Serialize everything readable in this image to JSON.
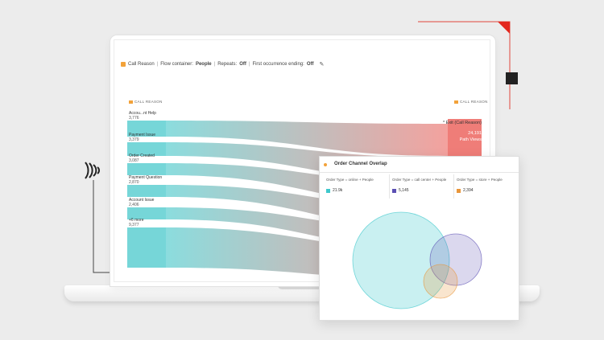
{
  "toolbar": {
    "dimension": "Call Reason",
    "container_label": "Flow container:",
    "container_value": "People",
    "repeats_label": "Repeats:",
    "repeats_value": "Off",
    "first_label": "First occurrence ending:",
    "first_value": "Off"
  },
  "flow": {
    "left_header": "CALL REASON",
    "right_header": "CALL REASON",
    "items": [
      {
        "label": "Accou...nt Help",
        "value": "3,776"
      },
      {
        "label": "Payment Issue",
        "value": "3,379"
      },
      {
        "label": "Order Created",
        "value": "3,087"
      },
      {
        "label": "Payment Question",
        "value": "2,870"
      },
      {
        "label": "Account Issue",
        "value": "2,406"
      },
      {
        "label": "+6 more",
        "value": "9,377"
      }
    ],
    "exit_label": "* Exit (Call Reason)",
    "exit_value": "24,191",
    "exit_unit": "Path Views",
    "colors": {
      "start": "#5ecfd1",
      "end": "#ef7d78"
    }
  },
  "venn": {
    "title": "Order Channel Overlap",
    "segments": [
      {
        "name": "Order Type = online + People",
        "value": "21.9k",
        "color": "#3ec8cc"
      },
      {
        "name": "Order Type = call center + People",
        "value": "5,145",
        "color": "#5b4fb3"
      },
      {
        "name": "Order Type = store + People",
        "value": "2,394",
        "color": "#e8963a"
      }
    ]
  }
}
